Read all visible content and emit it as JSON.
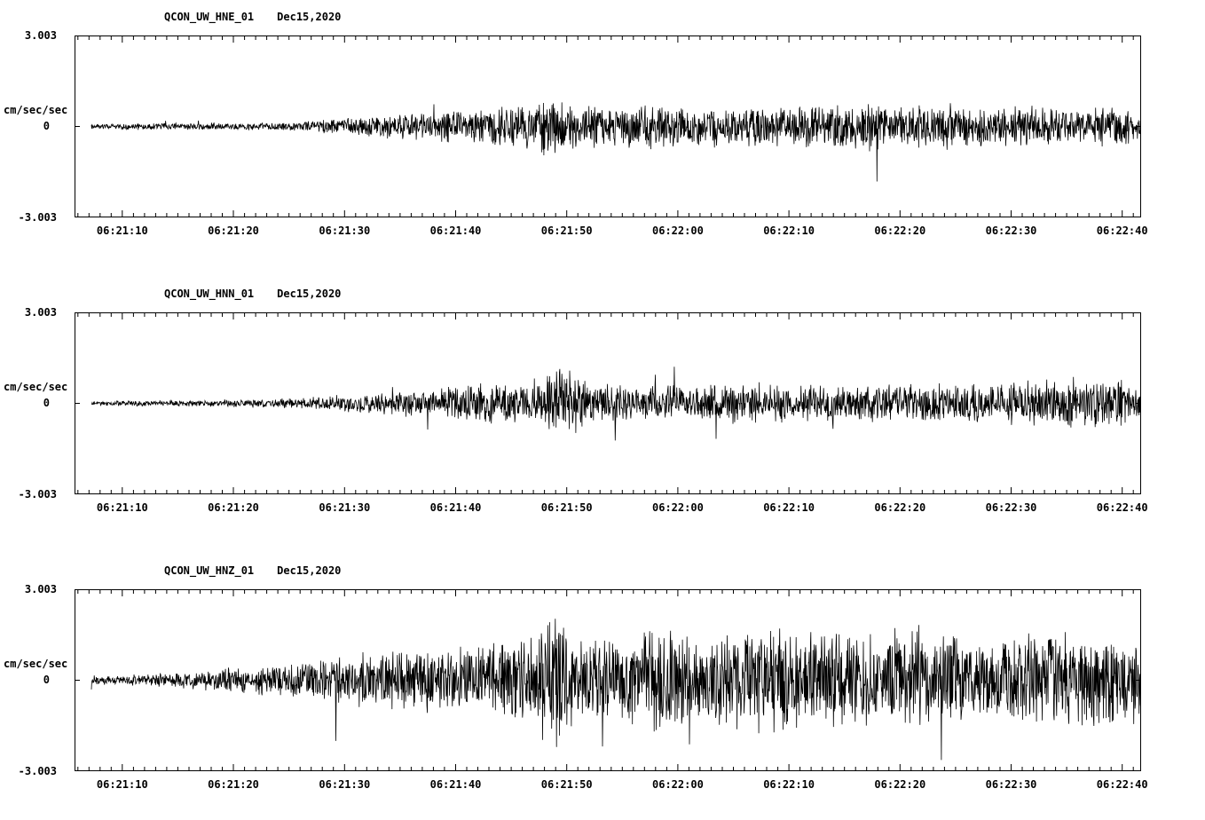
{
  "page": {
    "background": "#ffffff",
    "trace_color": "#000000",
    "axis_color": "#000000"
  },
  "chart_data": [
    {
      "type": "line",
      "title": "QCON_UW_HNE_01",
      "date_label": "Dec15,2020",
      "ylabel": "cm/sec/sec",
      "ylim": [
        -3.003,
        3.003
      ],
      "y_tick_labels": [
        "3.003",
        "0",
        "-3.003"
      ],
      "x_tick_labels": [
        "06:21:10",
        "06:21:20",
        "06:21:30",
        "06:21:40",
        "06:21:50",
        "06:22:00",
        "06:22:10",
        "06:22:20",
        "06:22:30",
        "06:22:40"
      ],
      "x_axis": {
        "span_s": 96,
        "first_tick_s": 4.3,
        "tick_interval_s": 10,
        "minor_tick_s": 1
      },
      "trace_start_s": 1.5,
      "seed": 12345,
      "envelope": {
        "t": [
          1.5,
          5,
          10,
          15,
          20,
          24,
          28,
          32,
          36,
          40,
          42,
          44,
          48,
          52,
          56,
          60,
          64,
          68,
          70,
          74,
          78,
          82,
          86,
          90,
          96
        ],
        "a": [
          0.1,
          0.12,
          0.13,
          0.14,
          0.18,
          0.3,
          0.45,
          0.55,
          0.65,
          0.8,
          1.35,
          0.85,
          0.75,
          0.85,
          0.7,
          0.8,
          0.75,
          0.85,
          1.0,
          0.8,
          0.85,
          0.75,
          0.8,
          0.7,
          0.65
        ]
      }
    },
    {
      "type": "line",
      "title": "QCON_UW_HNN_01",
      "date_label": "Dec15,2020",
      "ylabel": "cm/sec/sec",
      "ylim": [
        -3.003,
        3.003
      ],
      "y_tick_labels": [
        "3.003",
        "0",
        "-3.003"
      ],
      "x_tick_labels": [
        "06:21:10",
        "06:21:20",
        "06:21:30",
        "06:21:40",
        "06:21:50",
        "06:22:00",
        "06:22:10",
        "06:22:20",
        "06:22:30",
        "06:22:40"
      ],
      "x_axis": {
        "span_s": 96,
        "first_tick_s": 4.3,
        "tick_interval_s": 10,
        "minor_tick_s": 1
      },
      "trace_start_s": 1.5,
      "seed": 67890,
      "envelope": {
        "t": [
          1.5,
          5,
          10,
          15,
          20,
          24,
          28,
          32,
          36,
          40,
          44,
          46,
          50,
          54,
          58,
          62,
          66,
          70,
          74,
          78,
          82,
          86,
          90,
          96
        ],
        "a": [
          0.08,
          0.1,
          0.12,
          0.14,
          0.2,
          0.3,
          0.4,
          0.55,
          0.7,
          0.75,
          1.3,
          0.8,
          0.75,
          0.7,
          0.8,
          0.75,
          0.7,
          0.75,
          0.7,
          0.75,
          0.7,
          0.8,
          0.9,
          0.85
        ]
      }
    },
    {
      "type": "line",
      "title": "QCON_UW_HNZ_01",
      "date_label": "Dec15,2020",
      "ylabel": "cm/sec/sec",
      "ylim": [
        -3.003,
        3.003
      ],
      "y_tick_labels": [
        "3.003",
        "0",
        "-3.003"
      ],
      "x_tick_labels": [
        "06:21:10",
        "06:21:20",
        "06:21:30",
        "06:21:40",
        "06:21:50",
        "06:22:00",
        "06:22:10",
        "06:22:20",
        "06:22:30",
        "06:22:40"
      ],
      "x_axis": {
        "span_s": 96,
        "first_tick_s": 4.3,
        "tick_interval_s": 10,
        "minor_tick_s": 1
      },
      "trace_start_s": 1.5,
      "seed": 24680,
      "envelope": {
        "t": [
          1.5,
          5,
          10,
          14,
          18,
          22,
          26,
          30,
          34,
          38,
          41,
          43,
          45,
          48,
          52,
          56,
          60,
          64,
          68,
          72,
          76,
          80,
          84,
          88,
          92,
          96
        ],
        "a": [
          0.15,
          0.2,
          0.3,
          0.45,
          0.6,
          0.8,
          1.0,
          1.1,
          1.2,
          1.4,
          1.5,
          2.95,
          1.4,
          1.6,
          1.8,
          1.7,
          1.8,
          1.9,
          1.75,
          1.85,
          1.7,
          1.8,
          1.65,
          1.9,
          1.7,
          1.6
        ]
      }
    }
  ]
}
